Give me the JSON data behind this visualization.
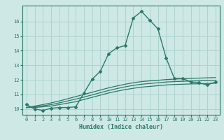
{
  "xlabel": "Humidex (Indice chaleur)",
  "background_color": "#cde8e5",
  "grid_color": "#aed4cf",
  "line_color": "#2a7a6a",
  "x_values": [
    0,
    1,
    2,
    3,
    4,
    5,
    6,
    7,
    8,
    9,
    10,
    11,
    12,
    13,
    14,
    15,
    16,
    17,
    18,
    19,
    20,
    21,
    22,
    23
  ],
  "main_y": [
    10.3,
    10.0,
    9.9,
    10.05,
    10.1,
    10.1,
    10.15,
    11.1,
    12.05,
    12.6,
    13.8,
    14.2,
    14.35,
    16.25,
    16.7,
    16.1,
    15.5,
    13.5,
    12.1,
    12.1,
    11.85,
    11.8,
    11.65,
    11.85
  ],
  "band_x": [
    0,
    1,
    2,
    3,
    4,
    5,
    6,
    7,
    8,
    9,
    10,
    11,
    12,
    13,
    14,
    15,
    16,
    17,
    18,
    19,
    20,
    21,
    22,
    23
  ],
  "band_y1": [
    10.1,
    10.1,
    10.15,
    10.2,
    10.3,
    10.4,
    10.5,
    10.65,
    10.8,
    10.95,
    11.1,
    11.22,
    11.33,
    11.42,
    11.5,
    11.55,
    11.6,
    11.65,
    11.68,
    11.7,
    11.72,
    11.73,
    11.75,
    11.77
  ],
  "band_y2": [
    10.1,
    10.15,
    10.22,
    10.3,
    10.42,
    10.55,
    10.68,
    10.82,
    10.97,
    11.12,
    11.27,
    11.4,
    11.52,
    11.62,
    11.7,
    11.75,
    11.8,
    11.85,
    11.88,
    11.9,
    11.92,
    11.93,
    11.95,
    11.97
  ],
  "band_y3": [
    10.1,
    10.2,
    10.3,
    10.42,
    10.55,
    10.7,
    10.85,
    11.0,
    11.15,
    11.3,
    11.45,
    11.58,
    11.7,
    11.8,
    11.88,
    11.93,
    11.97,
    12.02,
    12.05,
    12.08,
    12.1,
    12.12,
    12.14,
    12.16
  ],
  "ylim": [
    9.6,
    17.1
  ],
  "xlim": [
    -0.5,
    23.5
  ],
  "yticks": [
    10,
    11,
    12,
    13,
    14,
    15,
    16
  ],
  "xticks": [
    0,
    1,
    2,
    3,
    4,
    5,
    6,
    7,
    8,
    9,
    10,
    11,
    12,
    13,
    14,
    15,
    16,
    17,
    18,
    19,
    20,
    21,
    22,
    23
  ]
}
